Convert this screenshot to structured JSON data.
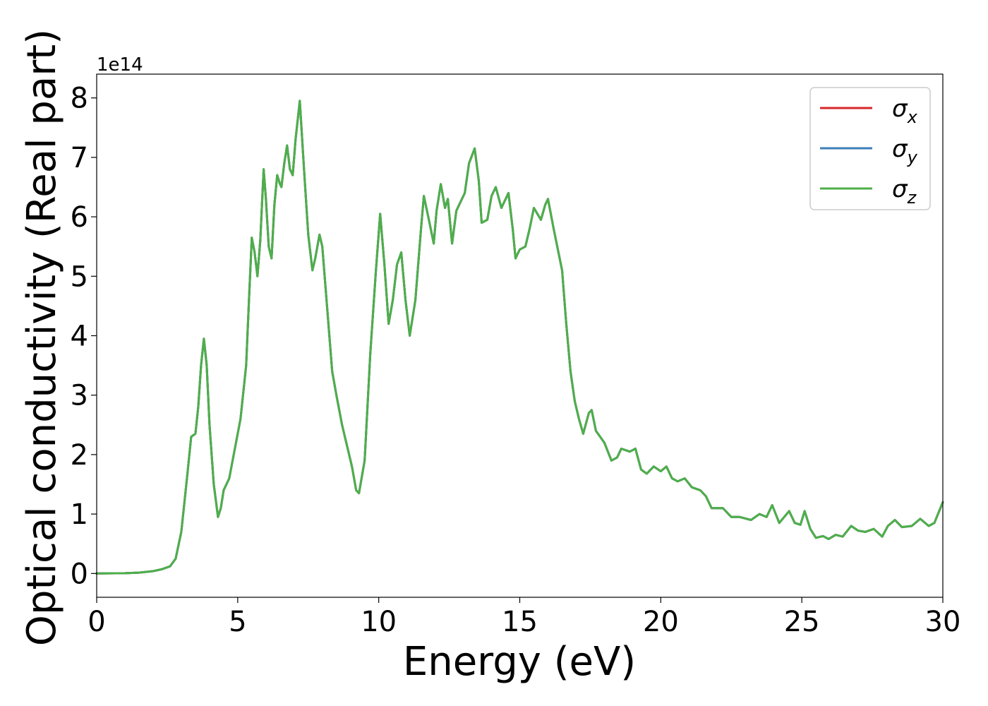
{
  "chart_data": {
    "type": "line",
    "xlabel": "Energy (eV)",
    "ylabel": "Optical conductivity (Real part)",
    "y_offset_label": "1e14",
    "y_scale_factor": 100000000000000.0,
    "xlim": [
      0,
      30
    ],
    "ylim": [
      -0.4,
      8.4
    ],
    "xticks": [
      "0",
      "5",
      "10",
      "15",
      "20",
      "25",
      "30"
    ],
    "yticks": [
      "0",
      "1",
      "2",
      "3",
      "4",
      "5",
      "6",
      "7",
      "8"
    ],
    "grid": false,
    "legend_position": "top-right",
    "series_symbols": [
      "σ",
      "σ",
      "σ"
    ],
    "series_subscripts": [
      "x",
      "y",
      "z"
    ],
    "series_colors": [
      "#d62728",
      "#3b7fb8",
      "#4daf4a"
    ],
    "curve": [
      [
        0,
        0.0
      ],
      [
        1.0,
        0.005
      ],
      [
        1.5,
        0.015
      ],
      [
        2.0,
        0.04
      ],
      [
        2.3,
        0.07
      ],
      [
        2.6,
        0.12
      ],
      [
        2.8,
        0.25
      ],
      [
        3.0,
        0.7
      ],
      [
        3.2,
        1.6
      ],
      [
        3.35,
        2.3
      ],
      [
        3.5,
        2.35
      ],
      [
        3.6,
        2.8
      ],
      [
        3.7,
        3.5
      ],
      [
        3.8,
        3.95
      ],
      [
        3.9,
        3.5
      ],
      [
        4.0,
        2.5
      ],
      [
        4.15,
        1.5
      ],
      [
        4.3,
        0.95
      ],
      [
        4.4,
        1.1
      ],
      [
        4.5,
        1.4
      ],
      [
        4.7,
        1.6
      ],
      [
        4.9,
        2.1
      ],
      [
        5.1,
        2.6
      ],
      [
        5.3,
        3.5
      ],
      [
        5.4,
        4.6
      ],
      [
        5.5,
        5.65
      ],
      [
        5.6,
        5.4
      ],
      [
        5.7,
        5.0
      ],
      [
        5.8,
        5.6
      ],
      [
        5.92,
        6.8
      ],
      [
        6.0,
        6.3
      ],
      [
        6.1,
        5.5
      ],
      [
        6.2,
        5.3
      ],
      [
        6.3,
        6.2
      ],
      [
        6.4,
        6.7
      ],
      [
        6.5,
        6.55
      ],
      [
        6.55,
        6.5
      ],
      [
        6.65,
        6.9
      ],
      [
        6.75,
        7.2
      ],
      [
        6.85,
        6.8
      ],
      [
        6.95,
        6.7
      ],
      [
        7.05,
        7.3
      ],
      [
        7.2,
        7.95
      ],
      [
        7.35,
        6.8
      ],
      [
        7.5,
        5.7
      ],
      [
        7.65,
        5.1
      ],
      [
        7.75,
        5.3
      ],
      [
        7.9,
        5.7
      ],
      [
        8.0,
        5.5
      ],
      [
        8.15,
        4.6
      ],
      [
        8.35,
        3.4
      ],
      [
        8.5,
        3.0
      ],
      [
        8.7,
        2.5
      ],
      [
        8.9,
        2.1
      ],
      [
        9.05,
        1.8
      ],
      [
        9.2,
        1.4
      ],
      [
        9.3,
        1.35
      ],
      [
        9.5,
        1.9
      ],
      [
        9.7,
        3.7
      ],
      [
        9.9,
        5.1
      ],
      [
        10.05,
        6.05
      ],
      [
        10.2,
        5.2
      ],
      [
        10.35,
        4.2
      ],
      [
        10.5,
        4.6
      ],
      [
        10.65,
        5.2
      ],
      [
        10.8,
        5.4
      ],
      [
        10.95,
        4.6
      ],
      [
        11.1,
        4.0
      ],
      [
        11.3,
        4.6
      ],
      [
        11.5,
        5.8
      ],
      [
        11.6,
        6.35
      ],
      [
        11.8,
        5.9
      ],
      [
        11.95,
        5.55
      ],
      [
        12.05,
        6.1
      ],
      [
        12.2,
        6.55
      ],
      [
        12.35,
        6.15
      ],
      [
        12.45,
        6.3
      ],
      [
        12.6,
        5.55
      ],
      [
        12.75,
        6.1
      ],
      [
        12.9,
        6.25
      ],
      [
        13.05,
        6.4
      ],
      [
        13.2,
        6.9
      ],
      [
        13.4,
        7.15
      ],
      [
        13.55,
        6.6
      ],
      [
        13.65,
        5.9
      ],
      [
        13.85,
        5.95
      ],
      [
        14.0,
        6.35
      ],
      [
        14.15,
        6.5
      ],
      [
        14.35,
        6.15
      ],
      [
        14.6,
        6.4
      ],
      [
        14.75,
        5.8
      ],
      [
        14.85,
        5.3
      ],
      [
        15.0,
        5.45
      ],
      [
        15.2,
        5.5
      ],
      [
        15.35,
        5.8
      ],
      [
        15.5,
        6.15
      ],
      [
        15.75,
        5.95
      ],
      [
        15.9,
        6.2
      ],
      [
        16.0,
        6.3
      ],
      [
        16.2,
        5.8
      ],
      [
        16.35,
        5.45
      ],
      [
        16.5,
        5.1
      ],
      [
        16.65,
        4.2
      ],
      [
        16.8,
        3.4
      ],
      [
        16.95,
        2.9
      ],
      [
        17.1,
        2.6
      ],
      [
        17.25,
        2.35
      ],
      [
        17.45,
        2.7
      ],
      [
        17.55,
        2.75
      ],
      [
        17.7,
        2.4
      ],
      [
        17.85,
        2.3
      ],
      [
        18.0,
        2.2
      ],
      [
        18.25,
        1.9
      ],
      [
        18.45,
        1.95
      ],
      [
        18.6,
        2.1
      ],
      [
        18.9,
        2.05
      ],
      [
        19.1,
        2.1
      ],
      [
        19.3,
        1.75
      ],
      [
        19.5,
        1.68
      ],
      [
        19.75,
        1.8
      ],
      [
        20.0,
        1.72
      ],
      [
        20.2,
        1.8
      ],
      [
        20.4,
        1.6
      ],
      [
        20.6,
        1.55
      ],
      [
        20.85,
        1.6
      ],
      [
        21.1,
        1.45
      ],
      [
        21.4,
        1.4
      ],
      [
        21.6,
        1.3
      ],
      [
        21.8,
        1.1
      ],
      [
        22.2,
        1.1
      ],
      [
        22.5,
        0.95
      ],
      [
        22.8,
        0.95
      ],
      [
        23.2,
        0.9
      ],
      [
        23.5,
        1.0
      ],
      [
        23.75,
        0.95
      ],
      [
        23.95,
        1.15
      ],
      [
        24.2,
        0.85
      ],
      [
        24.55,
        1.05
      ],
      [
        24.75,
        0.85
      ],
      [
        24.95,
        0.82
      ],
      [
        25.1,
        1.05
      ],
      [
        25.3,
        0.75
      ],
      [
        25.5,
        0.6
      ],
      [
        25.75,
        0.63
      ],
      [
        25.95,
        0.58
      ],
      [
        26.2,
        0.65
      ],
      [
        26.45,
        0.62
      ],
      [
        26.75,
        0.8
      ],
      [
        27.0,
        0.72
      ],
      [
        27.25,
        0.7
      ],
      [
        27.55,
        0.75
      ],
      [
        27.85,
        0.62
      ],
      [
        28.05,
        0.8
      ],
      [
        28.3,
        0.9
      ],
      [
        28.55,
        0.78
      ],
      [
        28.9,
        0.8
      ],
      [
        29.2,
        0.92
      ],
      [
        29.5,
        0.8
      ],
      [
        29.7,
        0.85
      ],
      [
        30.0,
        1.2
      ]
    ]
  }
}
